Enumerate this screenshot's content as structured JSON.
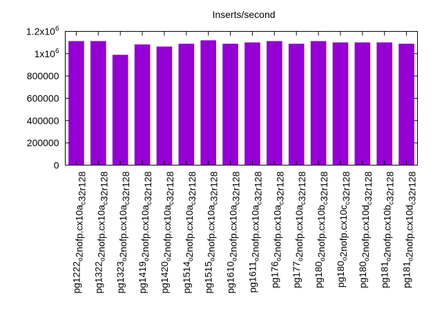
{
  "chart_data": {
    "type": "bar",
    "title": "Inserts/second",
    "xlabel": "",
    "ylabel": "",
    "ylim": [
      0,
      1200000
    ],
    "grid": false,
    "legend": "none",
    "bar_color": "#9400d3",
    "yticks": [
      0,
      200000,
      400000,
      600000,
      800000,
      1000000,
      1200000
    ],
    "ytick_labels": [
      "0",
      "200000",
      "400000",
      "600000",
      "800000",
      "1x10^6",
      "1.2x10^6"
    ],
    "categories": [
      "pg1222_o2nofp.cx10a_c32r128",
      "pg1322_o2nofp.cx10a_c32r128",
      "pg1323_o2nofp.cx10a_c32r128",
      "pg1419_o2nofp.cx10a_c32r128",
      "pg1420_o2nofp.cx10a_c32r128",
      "pg1514_o2nofp.cx10a_c32r128",
      "pg1515_o2nofp.cx10a_c32r128",
      "pg1610_o2nofp.cx10a_c32r128",
      "pg1611_o2nofp.cx10a_c32r128",
      "pg176_o2nofp.cx10a_c32r128",
      "pg177_o2nofp.cx10a_c32r128",
      "pg180_o2nofp.cx10b_c32r128",
      "pg180_o2nofp.cx10c_c32r128",
      "pg180_o2nofp.cx10d_c32r128",
      "pg181_o2nofp.cx10b_c32r128",
      "pg181_o2nofp.cx10d_c32r128"
    ],
    "values": [
      1113000,
      1113000,
      990000,
      1083000,
      1064000,
      1089000,
      1120000,
      1089000,
      1101000,
      1113000,
      1089000,
      1113000,
      1101000,
      1101000,
      1101000,
      1089000
    ]
  }
}
